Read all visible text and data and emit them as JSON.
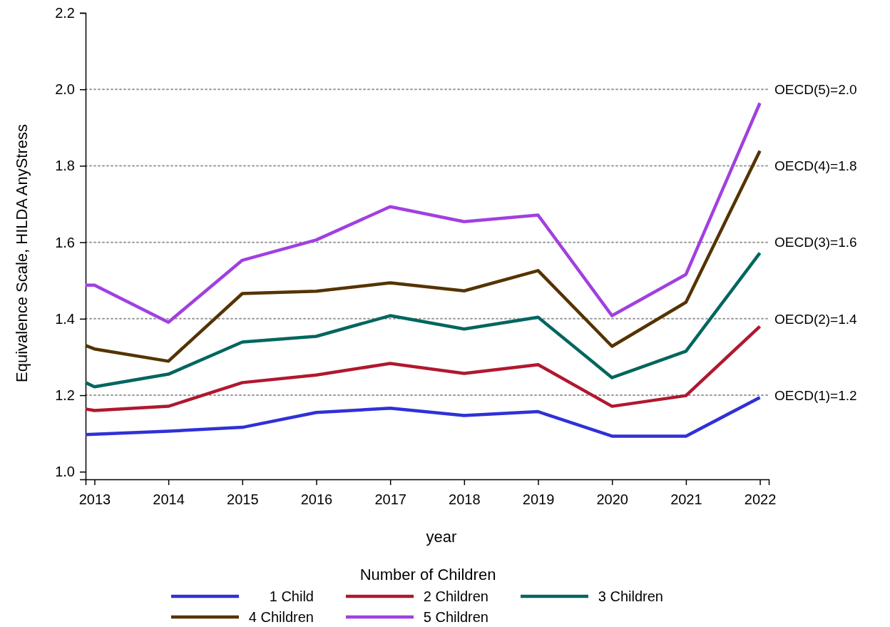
{
  "chart_data": {
    "type": "line",
    "xlabel": "year",
    "ylabel": "Equivalence Scale, HILDA AnyStress",
    "legend_title": "Number of Children",
    "legend": "bottom",
    "line_style": "solid",
    "marker": "none",
    "grid": false,
    "x": [
      2012.88,
      2013,
      2014,
      2015,
      2016,
      2017,
      2018,
      2019,
      2020,
      2021,
      2022
    ],
    "xlim": [
      2012.88,
      2022.12
    ],
    "xticks": [
      2013,
      2014,
      2015,
      2016,
      2017,
      2018,
      2019,
      2020,
      2021,
      2022
    ],
    "ylim": [
      0.98,
      2.2
    ],
    "yticks": [
      {
        "value": 1.0,
        "label": "1.0"
      },
      {
        "value": 1.2,
        "label": "1.2"
      },
      {
        "value": 1.4,
        "label": "1.4"
      },
      {
        "value": 1.6,
        "label": "1.6"
      },
      {
        "value": 1.8,
        "label": "1.8"
      },
      {
        "value": 2.0,
        "label": "2.0"
      },
      {
        "value": 2.2,
        "label": "2.2"
      }
    ],
    "series": [
      {
        "name": "1 Child",
        "color": "#3030d8",
        "values": [
          1.097,
          1.098,
          1.106,
          1.116,
          1.155,
          1.166,
          1.147,
          1.157,
          1.093,
          1.093,
          1.194
        ]
      },
      {
        "name": "2 Children",
        "color": "#b0182f",
        "values": [
          1.164,
          1.16,
          1.171,
          1.233,
          1.253,
          1.283,
          1.257,
          1.28,
          1.171,
          1.199,
          1.38
        ]
      },
      {
        "name": "3 Children",
        "color": "#00665e",
        "values": [
          1.233,
          1.222,
          1.255,
          1.339,
          1.354,
          1.408,
          1.373,
          1.404,
          1.246,
          1.315,
          1.572
        ]
      },
      {
        "name": "4 Children",
        "color": "#553300",
        "values": [
          1.33,
          1.321,
          1.289,
          1.466,
          1.472,
          1.494,
          1.473,
          1.526,
          1.328,
          1.443,
          1.839
        ]
      },
      {
        "name": "5 Children",
        "color": "#a040e0",
        "values": [
          1.488,
          1.488,
          1.391,
          1.553,
          1.606,
          1.693,
          1.654,
          1.671,
          1.408,
          1.516,
          1.964
        ]
      }
    ],
    "ref_lines": [
      {
        "axis": "y",
        "value": 1.2,
        "label": "OECD(1)=1.2",
        "color": "#999999",
        "line_style": "dotted"
      },
      {
        "axis": "y",
        "value": 1.4,
        "label": "OECD(2)=1.4",
        "color": "#999999",
        "line_style": "dotted"
      },
      {
        "axis": "y",
        "value": 1.6,
        "label": "OECD(3)=1.6",
        "color": "#999999",
        "line_style": "dotted"
      },
      {
        "axis": "y",
        "value": 1.8,
        "label": "OECD(4)=1.8",
        "color": "#999999",
        "line_style": "dotted"
      },
      {
        "axis": "y",
        "value": 2.0,
        "label": "OECD(5)=2.0",
        "color": "#999999",
        "line_style": "dotted"
      }
    ]
  }
}
